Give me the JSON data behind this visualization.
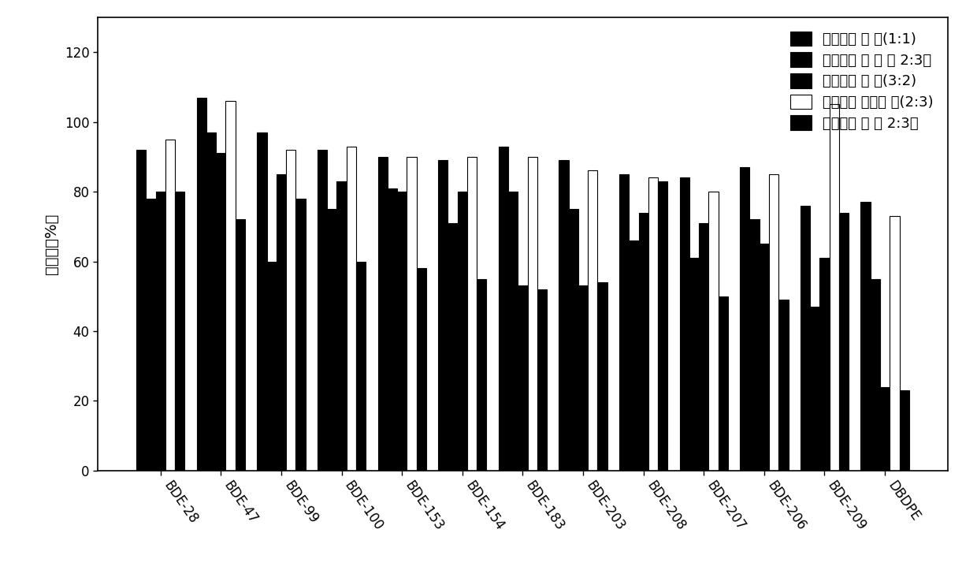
{
  "categories": [
    "BDE-28",
    "BDE-47",
    "BDE-99",
    "BDE-100",
    "BDE-153",
    "BDE-154",
    "BDE-183",
    "BDE-203",
    "BDE-208",
    "BDE-207",
    "BDE-206",
    "BDE-209",
    "DBDPE"
  ],
  "series": [
    {
      "name": "正己烷： 丙 酮(1:1)",
      "color": "#000000",
      "edgecolor": "#000000",
      "values": [
        92,
        107,
        97,
        92,
        90,
        89,
        93,
        89,
        85,
        84,
        87,
        76,
        77
      ]
    },
    {
      "name": "正己烷： 丙 酮 （ 2:3）",
      "color": "#000000",
      "edgecolor": "#000000",
      "values": [
        78,
        97,
        60,
        75,
        81,
        71,
        80,
        75,
        66,
        61,
        72,
        47,
        55
      ]
    },
    {
      "name": "正己烷： 丙 酮(3:2)",
      "color": "#000000",
      "edgecolor": "#000000",
      "values": [
        80,
        91,
        85,
        83,
        80,
        80,
        53,
        53,
        74,
        71,
        65,
        61,
        24
      ]
    },
    {
      "name": "正己烷： 二氯甲 烷(2:3)",
      "color": "#ffffff",
      "edgecolor": "#000000",
      "values": [
        95,
        106,
        92,
        93,
        90,
        90,
        90,
        86,
        84,
        80,
        85,
        105,
        73
      ]
    },
    {
      "name": "正己烷： 水 （ 2:3）",
      "color": "#000000",
      "edgecolor": "#000000",
      "values": [
        80,
        72,
        78,
        60,
        58,
        55,
        52,
        54,
        83,
        50,
        49,
        74,
        23
      ]
    }
  ],
  "ylabel": "回收率（%）",
  "ylim": [
    0,
    130
  ],
  "yticks": [
    0,
    20,
    40,
    60,
    80,
    100,
    120
  ],
  "bar_width": 0.16,
  "legend_fontsize": 13,
  "tick_fontsize": 12,
  "label_fontsize": 14,
  "background_color": "#ffffff"
}
